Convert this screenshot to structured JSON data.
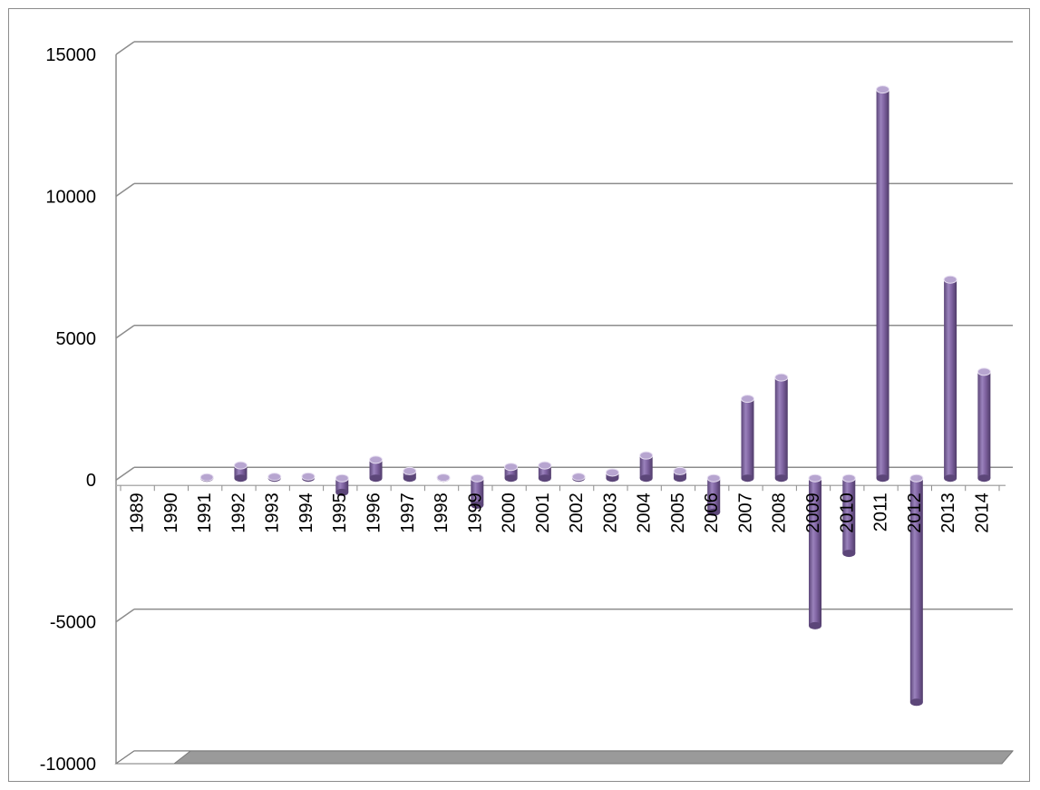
{
  "chart_data": {
    "type": "bar",
    "style": "3d-cylinder",
    "categories": [
      "1989",
      "1990",
      "1991",
      "1992",
      "1993",
      "1994",
      "1995",
      "1996",
      "1997",
      "1998",
      "1999",
      "2000",
      "2001",
      "2002",
      "2003",
      "2004",
      "2005",
      "2006",
      "2007",
      "2008",
      "2009",
      "2010",
      "2011",
      "2012",
      "2013",
      "2014"
    ],
    "values": [
      0,
      0,
      30,
      450,
      50,
      60,
      -500,
      650,
      250,
      20,
      -950,
      400,
      450,
      50,
      200,
      800,
      250,
      -1200,
      2800,
      3550,
      -5200,
      -2650,
      13700,
      -7900,
      7000,
      3750
    ],
    "ylim": [
      -10000,
      15000
    ],
    "yticks": [
      15000,
      10000,
      5000,
      0,
      -5000,
      -10000
    ],
    "grid": true,
    "legend": "none",
    "title": "",
    "xlabel": "",
    "ylabel": "",
    "colors": {
      "bar": "#8064a2",
      "bar_light": "#b7a5d0",
      "bar_dark": "#5c4679",
      "floor": "#9a9a9a",
      "grid": "#8c8c8c"
    }
  }
}
